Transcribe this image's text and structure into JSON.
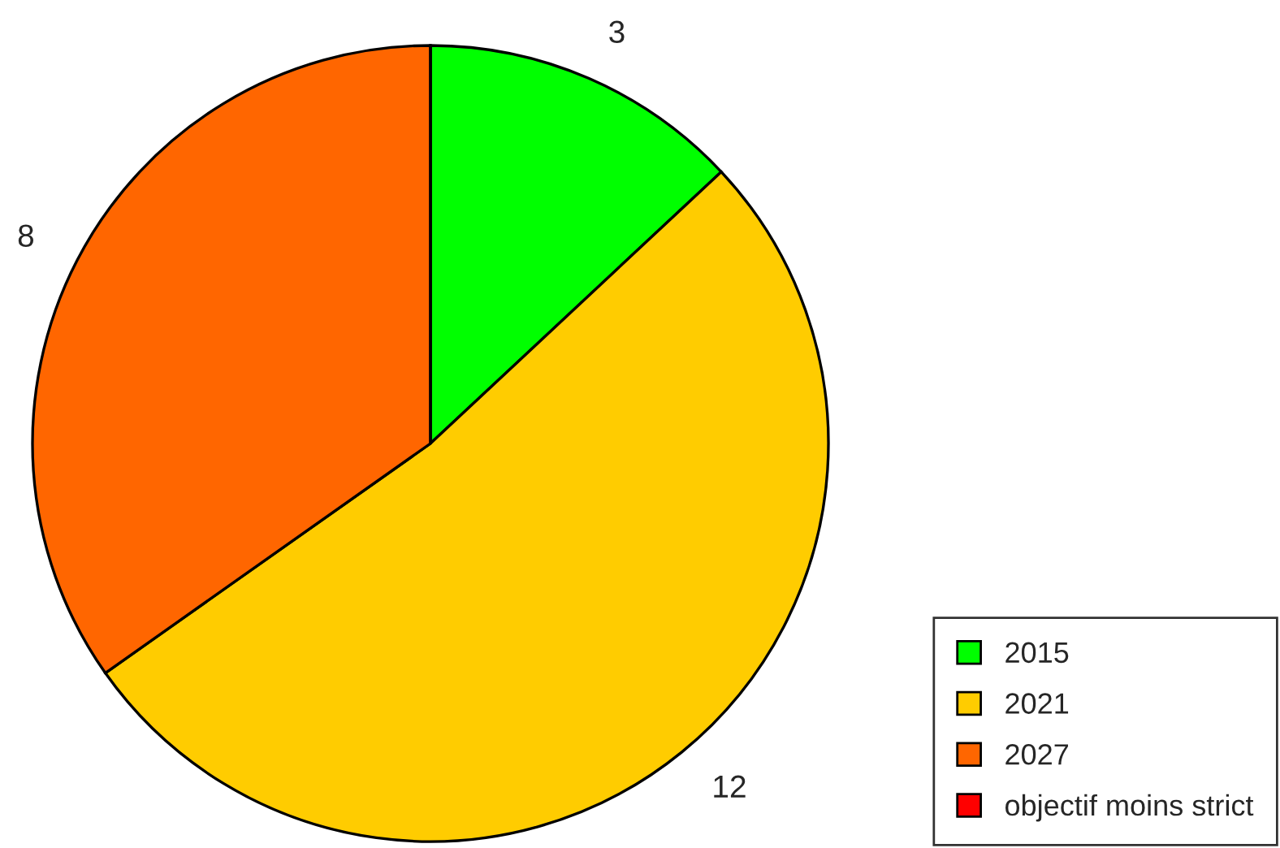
{
  "chart_data": {
    "type": "pie",
    "categories": [
      "2015",
      "2021",
      "2027",
      "objectif moins strict"
    ],
    "values": [
      3,
      12,
      8,
      0
    ],
    "value_labels": [
      "3",
      "12",
      "8",
      null
    ],
    "colors": [
      "#00ff00",
      "#ffcc00",
      "#ff6600",
      "#ff0000"
    ],
    "legend": "bottom right"
  }
}
